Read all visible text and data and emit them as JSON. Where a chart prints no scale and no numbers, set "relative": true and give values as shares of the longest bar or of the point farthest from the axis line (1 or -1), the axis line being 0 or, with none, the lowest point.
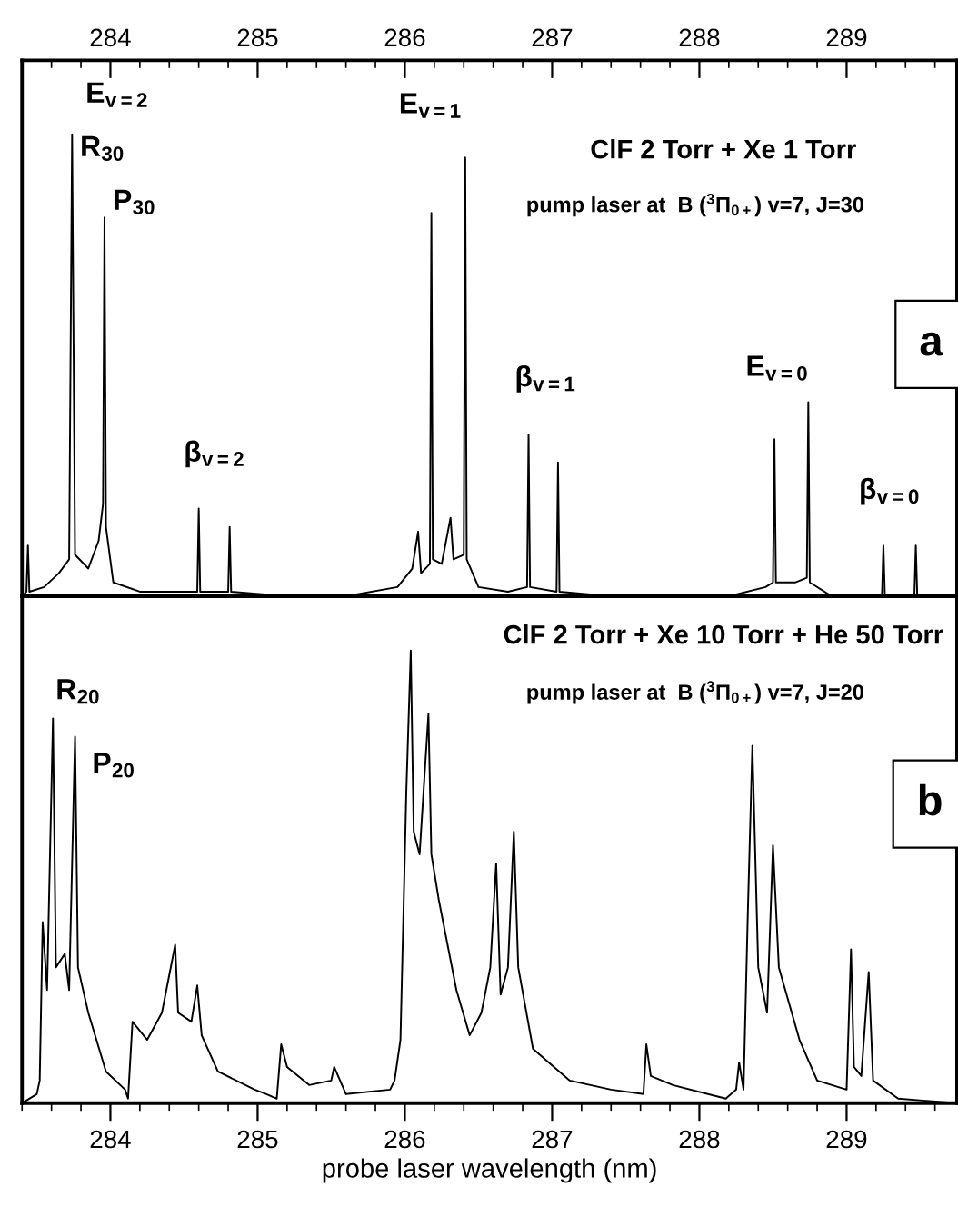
{
  "chart_data": [
    {
      "type": "line",
      "relative": true,
      "tick_labels": "x",
      "xlim": [
        283.4,
        289.75
      ],
      "xticks": [
        284,
        285,
        286,
        287,
        288,
        289
      ],
      "grid": false,
      "legend": false,
      "marker": "none",
      "line_style": "solid",
      "series": [
        {
          "color": "#000000",
          "x": [
            283.4,
            283.43,
            283.44,
            283.45,
            283.55,
            283.65,
            283.72,
            283.74,
            283.76,
            283.85,
            283.92,
            283.95,
            283.96,
            283.97,
            284.02,
            284.2,
            284.4,
            284.59,
            284.6,
            284.61,
            284.8,
            284.81,
            284.82,
            285.2,
            285.6,
            285.95,
            286.05,
            286.09,
            286.11,
            286.17,
            286.18,
            286.19,
            286.25,
            286.31,
            286.33,
            286.4,
            286.41,
            286.42,
            286.5,
            286.7,
            286.83,
            286.84,
            286.85,
            287.03,
            287.04,
            287.05,
            287.4,
            287.8,
            288.2,
            288.45,
            288.5,
            288.51,
            288.52,
            288.65,
            288.73,
            288.74,
            288.75,
            288.9,
            289.24,
            289.25,
            289.26,
            289.46,
            289.47,
            289.48,
            289.75
          ],
          "values": [
            0.0,
            0.01,
            0.11,
            0.01,
            0.02,
            0.05,
            0.08,
            1.0,
            0.09,
            0.06,
            0.12,
            0.2,
            0.82,
            0.15,
            0.03,
            0.01,
            0.01,
            0.01,
            0.19,
            0.01,
            0.01,
            0.15,
            0.01,
            0.0,
            0.0,
            0.02,
            0.06,
            0.14,
            0.05,
            0.07,
            0.83,
            0.08,
            0.07,
            0.17,
            0.08,
            0.09,
            0.95,
            0.08,
            0.02,
            0.01,
            0.02,
            0.35,
            0.02,
            0.01,
            0.29,
            0.01,
            0.0,
            0.0,
            0.0,
            0.02,
            0.03,
            0.34,
            0.03,
            0.03,
            0.04,
            0.42,
            0.03,
            0.0,
            0.0,
            0.11,
            0.0,
            0.0,
            0.11,
            0.0,
            0.0
          ]
        }
      ],
      "annotations": [
        "ClF 2 Torr + Xe 1 Torr",
        "pump laser at  B ($^{3}$Π$_{0+}$) v=7, J=30",
        "a",
        "E$_{v=2}$",
        "R$_{30}$",
        "P$_{30}$",
        "β$_{v=2}$",
        "E$_{v=1}$",
        "β$_{v=1}$",
        "E$_{v=0}$",
        "β$_{v=0}$"
      ]
    },
    {
      "type": "line",
      "relative": true,
      "tick_labels": "x",
      "xlabel": "probe laser wavelength (nm)",
      "xlim": [
        283.4,
        289.75
      ],
      "xticks": [
        284,
        285,
        286,
        287,
        288,
        289
      ],
      "grid": false,
      "legend": false,
      "marker": "none",
      "line_style": "solid",
      "series": [
        {
          "color": "#000000",
          "x": [
            283.4,
            283.5,
            283.52,
            283.54,
            283.57,
            283.61,
            283.63,
            283.69,
            283.72,
            283.76,
            283.78,
            283.85,
            283.97,
            284.1,
            284.12,
            284.15,
            284.25,
            284.35,
            284.44,
            284.46,
            284.55,
            284.59,
            284.62,
            284.73,
            284.98,
            285.06,
            285.13,
            285.16,
            285.2,
            285.35,
            285.5,
            285.52,
            285.6,
            285.9,
            285.93,
            285.97,
            286.01,
            286.04,
            286.06,
            286.1,
            286.16,
            286.18,
            286.23,
            286.35,
            286.44,
            286.52,
            286.58,
            286.62,
            286.65,
            286.7,
            286.74,
            286.77,
            286.87,
            287.12,
            287.4,
            287.62,
            287.64,
            287.67,
            287.82,
            288.18,
            288.25,
            288.27,
            288.3,
            288.33,
            288.36,
            288.4,
            288.46,
            288.5,
            288.54,
            288.68,
            288.8,
            289.0,
            289.03,
            289.05,
            289.1,
            289.15,
            289.18,
            289.35,
            289.75
          ],
          "values": [
            0.0,
            0.02,
            0.05,
            0.4,
            0.25,
            0.85,
            0.3,
            0.33,
            0.25,
            0.81,
            0.3,
            0.2,
            0.07,
            0.03,
            0.01,
            0.18,
            0.14,
            0.2,
            0.35,
            0.2,
            0.18,
            0.26,
            0.15,
            0.07,
            0.03,
            0.02,
            0.01,
            0.13,
            0.08,
            0.04,
            0.05,
            0.08,
            0.02,
            0.03,
            0.05,
            0.14,
            0.69,
            1.0,
            0.6,
            0.55,
            0.86,
            0.55,
            0.45,
            0.25,
            0.15,
            0.2,
            0.3,
            0.53,
            0.24,
            0.3,
            0.6,
            0.3,
            0.12,
            0.05,
            0.03,
            0.02,
            0.13,
            0.06,
            0.04,
            0.01,
            0.03,
            0.09,
            0.03,
            0.43,
            0.79,
            0.3,
            0.2,
            0.57,
            0.3,
            0.14,
            0.05,
            0.03,
            0.34,
            0.08,
            0.06,
            0.29,
            0.05,
            0.01,
            0.0
          ]
        }
      ],
      "annotations": [
        "ClF 2 Torr + Xe 10 Torr + He 50 Torr",
        "pump laser at  B ($^{3}$Π$_{0+}$) v=7, J=20",
        "b",
        "R$_{20}$",
        "P$_{20}$"
      ]
    }
  ]
}
